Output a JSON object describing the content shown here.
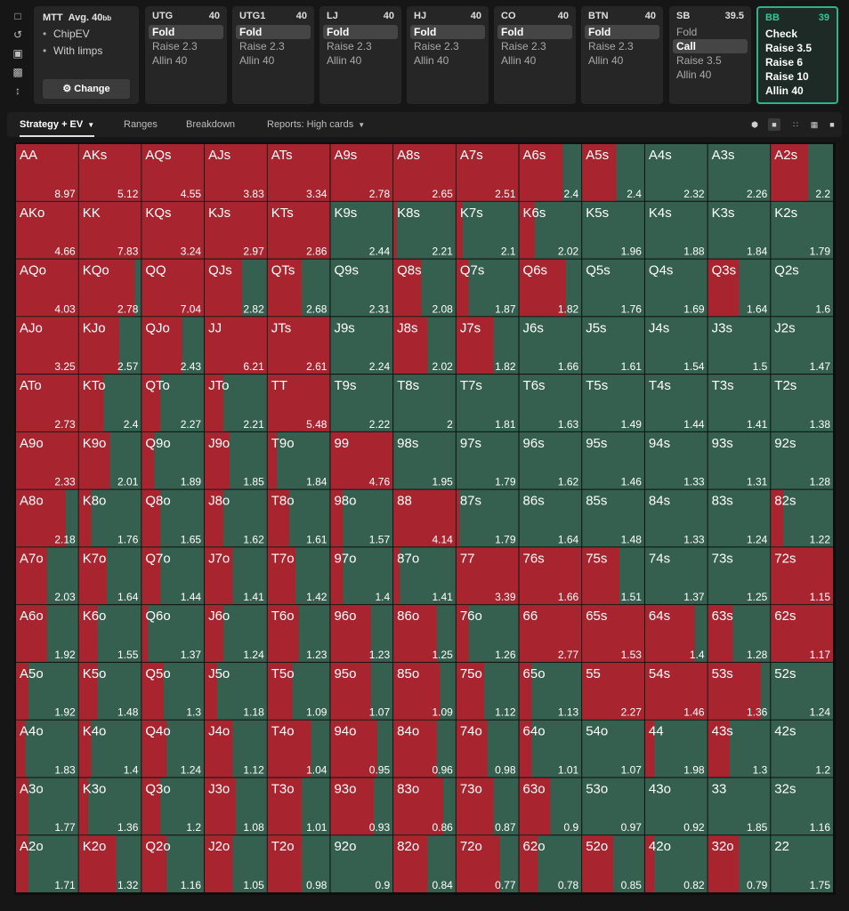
{
  "colors": {
    "fold": "#a8252f",
    "play": "#35604f",
    "accent": "#2fb28a"
  },
  "rail_icons": [
    "bookmark-icon",
    "history-icon",
    "save-icon",
    "gamepad-icon",
    "text-height-icon"
  ],
  "game": {
    "format": "MTT",
    "stack_label": "Avg. 40",
    "stack_unit": "bb",
    "options": [
      "ChipEV",
      "With limps"
    ],
    "change_label": "Change",
    "change_icon": "gear-icon"
  },
  "positions": [
    {
      "name": "UTG",
      "stack": "40",
      "actions": [
        "Fold",
        "Raise 2.3",
        "Allin 40"
      ],
      "selected": 0
    },
    {
      "name": "UTG1",
      "stack": "40",
      "actions": [
        "Fold",
        "Raise 2.3",
        "Allin 40"
      ],
      "selected": 0
    },
    {
      "name": "LJ",
      "stack": "40",
      "actions": [
        "Fold",
        "Raise 2.3",
        "Allin 40"
      ],
      "selected": 0
    },
    {
      "name": "HJ",
      "stack": "40",
      "actions": [
        "Fold",
        "Raise 2.3",
        "Allin 40"
      ],
      "selected": 0
    },
    {
      "name": "CO",
      "stack": "40",
      "actions": [
        "Fold",
        "Raise 2.3",
        "Allin 40"
      ],
      "selected": 0
    },
    {
      "name": "BTN",
      "stack": "40",
      "actions": [
        "Fold",
        "Raise 2.3",
        "Allin 40"
      ],
      "selected": 0
    },
    {
      "name": "SB",
      "stack": "39.5",
      "actions": [
        "Fold",
        "Call",
        "Raise 3.5",
        "Allin 40"
      ],
      "selected": 1
    },
    {
      "name": "BB",
      "stack": "39",
      "actions": [
        "Check",
        "Raise 3.5",
        "Raise 6",
        "Raise 10",
        "Allin 40"
      ],
      "selected": -1,
      "active": true
    }
  ],
  "toolbar": {
    "tabs": [
      "Strategy + EV",
      "Ranges",
      "Breakdown",
      "Reports: High cards"
    ],
    "view_icons": [
      "cube-icon",
      "square-view-icon",
      "grid-small-icon",
      "grid-large-icon",
      "square-filled-icon"
    ]
  },
  "hands": [
    [
      "AA",
      "AKs",
      "AQs",
      "AJs",
      "ATs",
      "A9s",
      "A8s",
      "A7s",
      "A6s",
      "A5s",
      "A4s",
      "A3s",
      "A2s"
    ],
    [
      "AKo",
      "KK",
      "KQs",
      "KJs",
      "KTs",
      "K9s",
      "K8s",
      "K7s",
      "K6s",
      "K5s",
      "K4s",
      "K3s",
      "K2s"
    ],
    [
      "AQo",
      "KQo",
      "QQ",
      "QJs",
      "QTs",
      "Q9s",
      "Q8s",
      "Q7s",
      "Q6s",
      "Q5s",
      "Q4s",
      "Q3s",
      "Q2s"
    ],
    [
      "AJo",
      "KJo",
      "QJo",
      "JJ",
      "JTs",
      "J9s",
      "J8s",
      "J7s",
      "J6s",
      "J5s",
      "J4s",
      "J3s",
      "J2s"
    ],
    [
      "ATo",
      "KTo",
      "QTo",
      "JTo",
      "TT",
      "T9s",
      "T8s",
      "T7s",
      "T6s",
      "T5s",
      "T4s",
      "T3s",
      "T2s"
    ],
    [
      "A9o",
      "K9o",
      "Q9o",
      "J9o",
      "T9o",
      "99",
      "98s",
      "97s",
      "96s",
      "95s",
      "94s",
      "93s",
      "92s"
    ],
    [
      "A8o",
      "K8o",
      "Q8o",
      "J8o",
      "T8o",
      "98o",
      "88",
      "87s",
      "86s",
      "85s",
      "84s",
      "83s",
      "82s"
    ],
    [
      "A7o",
      "K7o",
      "Q7o",
      "J7o",
      "T7o",
      "97o",
      "87o",
      "77",
      "76s",
      "75s",
      "74s",
      "73s",
      "72s"
    ],
    [
      "A6o",
      "K6o",
      "Q6o",
      "J6o",
      "T6o",
      "96o",
      "86o",
      "76o",
      "66",
      "65s",
      "64s",
      "63s",
      "62s"
    ],
    [
      "A5o",
      "K5o",
      "Q5o",
      "J5o",
      "T5o",
      "95o",
      "85o",
      "75o",
      "65o",
      "55",
      "54s",
      "53s",
      "52s"
    ],
    [
      "A4o",
      "K4o",
      "Q4o",
      "J4o",
      "T4o",
      "94o",
      "84o",
      "74o",
      "64o",
      "54o",
      "44",
      "43s",
      "42s"
    ],
    [
      "A3o",
      "K3o",
      "Q3o",
      "J3o",
      "T3o",
      "93o",
      "83o",
      "73o",
      "63o",
      "53o",
      "43o",
      "33",
      "32s"
    ],
    [
      "A2o",
      "K2o",
      "Q2o",
      "J2o",
      "T2o",
      "92o",
      "82o",
      "72o",
      "62o",
      "52o",
      "42o",
      "32o",
      "22"
    ]
  ],
  "evs": [
    [
      "8.97",
      "5.12",
      "4.55",
      "3.83",
      "3.34",
      "2.78",
      "2.65",
      "2.51",
      "2.4",
      "2.4",
      "2.32",
      "2.26",
      "2.2"
    ],
    [
      "4.66",
      "7.83",
      "3.24",
      "2.97",
      "2.86",
      "2.44",
      "2.21",
      "2.1",
      "2.02",
      "1.96",
      "1.88",
      "1.84",
      "1.79"
    ],
    [
      "4.03",
      "2.78",
      "7.04",
      "2.82",
      "2.68",
      "2.31",
      "2.08",
      "1.87",
      "1.82",
      "1.76",
      "1.69",
      "1.64",
      "1.6"
    ],
    [
      "3.25",
      "2.57",
      "2.43",
      "6.21",
      "2.61",
      "2.24",
      "2.02",
      "1.82",
      "1.66",
      "1.61",
      "1.54",
      "1.5",
      "1.47"
    ],
    [
      "2.73",
      "2.4",
      "2.27",
      "2.21",
      "5.48",
      "2.22",
      "2",
      "1.81",
      "1.63",
      "1.49",
      "1.44",
      "1.41",
      "1.38"
    ],
    [
      "2.33",
      "2.01",
      "1.89",
      "1.85",
      "1.84",
      "4.76",
      "1.95",
      "1.79",
      "1.62",
      "1.46",
      "1.33",
      "1.31",
      "1.28"
    ],
    [
      "2.18",
      "1.76",
      "1.65",
      "1.62",
      "1.61",
      "1.57",
      "4.14",
      "1.79",
      "1.64",
      "1.48",
      "1.33",
      "1.24",
      "1.22"
    ],
    [
      "2.03",
      "1.64",
      "1.44",
      "1.41",
      "1.42",
      "1.4",
      "1.41",
      "3.39",
      "1.66",
      "1.51",
      "1.37",
      "1.25",
      "1.15"
    ],
    [
      "1.92",
      "1.55",
      "1.37",
      "1.24",
      "1.23",
      "1.23",
      "1.25",
      "1.26",
      "2.77",
      "1.53",
      "1.4",
      "1.28",
      "1.17"
    ],
    [
      "1.92",
      "1.48",
      "1.3",
      "1.18",
      "1.09",
      "1.07",
      "1.09",
      "1.12",
      "1.13",
      "2.27",
      "1.46",
      "1.36",
      "1.24"
    ],
    [
      "1.83",
      "1.4",
      "1.24",
      "1.12",
      "1.04",
      "0.95",
      "0.96",
      "0.98",
      "1.01",
      "1.07",
      "1.98",
      "1.3",
      "1.2"
    ],
    [
      "1.77",
      "1.36",
      "1.2",
      "1.08",
      "1.01",
      "0.93",
      "0.86",
      "0.87",
      "0.9",
      "0.97",
      "0.92",
      "1.85",
      "1.16"
    ],
    [
      "1.71",
      "1.32",
      "1.16",
      "1.05",
      "0.98",
      "0.9",
      "0.84",
      "0.77",
      "0.78",
      "0.85",
      "0.82",
      "0.79",
      "1.75"
    ]
  ],
  "red_fraction": [
    [
      1,
      1,
      1,
      1,
      1,
      1,
      1,
      1,
      0.7,
      0.55,
      0,
      0,
      0.6
    ],
    [
      1,
      1,
      1,
      1,
      1,
      0,
      0.05,
      0.1,
      0.25,
      0,
      0,
      0,
      0
    ],
    [
      1,
      0.9,
      1,
      0.6,
      0.55,
      0,
      0.45,
      0.2,
      0.75,
      0,
      0,
      0.5,
      0
    ],
    [
      1,
      0.65,
      0.65,
      1,
      1,
      0,
      0.55,
      0.6,
      0,
      0,
      0,
      0,
      0
    ],
    [
      1,
      0.4,
      0.3,
      0.3,
      1,
      0,
      0,
      0,
      0,
      0,
      0,
      0,
      0
    ],
    [
      1,
      0.5,
      0.2,
      0.4,
      0.15,
      1,
      0,
      0,
      0,
      0,
      0,
      0,
      0
    ],
    [
      0.8,
      0.2,
      0.3,
      0.3,
      0.35,
      0.2,
      1,
      0.05,
      0,
      0,
      0,
      0,
      0.2
    ],
    [
      0.5,
      0.45,
      0.3,
      0.45,
      0.45,
      0.2,
      0.1,
      1,
      1,
      0.6,
      0,
      0,
      1
    ],
    [
      0.5,
      0.3,
      0.1,
      0.3,
      0.5,
      0.65,
      0.7,
      0.2,
      1,
      1,
      0.8,
      0.4,
      1
    ],
    [
      0.2,
      0.3,
      0.35,
      0.2,
      0.4,
      0.65,
      0.75,
      0.45,
      0.2,
      1,
      1,
      0.85,
      0
    ],
    [
      0.15,
      0.2,
      0.4,
      0.45,
      0.7,
      0.75,
      0.7,
      0.5,
      0.2,
      0,
      0.15,
      0.35,
      0
    ],
    [
      0.2,
      0.15,
      0.3,
      0.5,
      0.55,
      0.7,
      0.8,
      0.6,
      0.5,
      0,
      0,
      0,
      0
    ],
    [
      0.2,
      0.6,
      0.4,
      0.45,
      0.55,
      0,
      0.55,
      0.7,
      0.3,
      0.5,
      0.15,
      0.5,
      0
    ]
  ]
}
